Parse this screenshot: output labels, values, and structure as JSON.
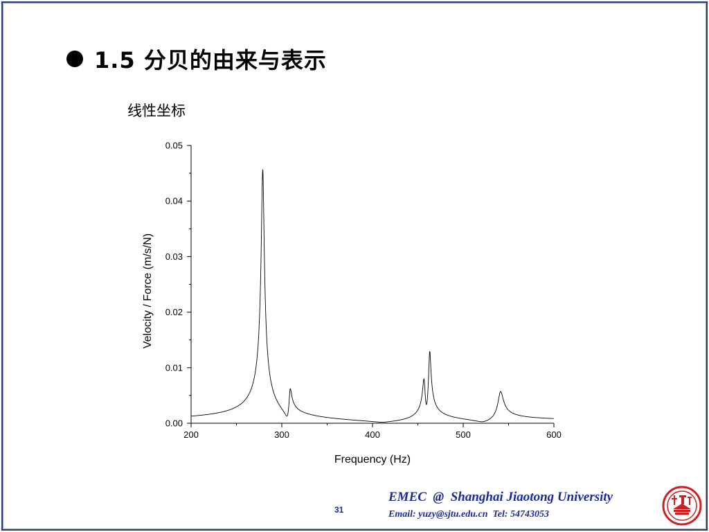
{
  "slide": {
    "title": "1.5 分贝的由来与表示",
    "subtitle": "线性坐标",
    "page_number": "31",
    "footer_brand": "EMEC  @  Shanghai Jiaotong University",
    "footer_contact": "Email: yuzy@sjtu.edu.cn  Tel: 54743053",
    "logo_icon": "university-seal-icon",
    "colors": {
      "frame": "#2a3f7a",
      "footer_text": "#1a2a99",
      "logo_red": "#cc1f1f"
    }
  },
  "chart_data": {
    "type": "line",
    "xlabel": "Frequency (Hz)",
    "ylabel": "Velocity / Force  (m/s/N)",
    "xlim": [
      200,
      600
    ],
    "ylim": [
      0,
      0.05
    ],
    "x_ticks": [
      200,
      300,
      400,
      500,
      600
    ],
    "x_tick_labels": [
      "200",
      "300",
      "400",
      "500",
      "600"
    ],
    "y_ticks": [
      0,
      0.01,
      0.02,
      0.03,
      0.04,
      0.05
    ],
    "y_tick_labels": [
      "0.00",
      "0.01",
      "0.02",
      "0.03",
      "0.04",
      "0.05"
    ],
    "grid": false,
    "legend": "none",
    "series": [
      {
        "color": "#000000",
        "peaks": [
          {
            "x": 279,
            "y": 0.0455,
            "width": 1.6
          },
          {
            "x": 309,
            "y": 0.0052,
            "width": 1.4
          },
          {
            "x": 457,
            "y": 0.0068,
            "width": 1.4
          },
          {
            "x": 463,
            "y": 0.0122,
            "width": 1.3
          },
          {
            "x": 541,
            "y": 0.0055,
            "width": 2.8
          }
        ],
        "x": [
          200,
          230,
          260,
          270,
          275,
          278,
          279,
          280,
          283,
          290,
          300,
          306,
          309,
          312,
          320,
          350,
          400,
          430,
          450,
          455,
          457,
          459,
          461,
          463,
          465,
          470,
          490,
          530,
          537,
          541,
          545,
          552,
          580,
          600
        ],
        "y": [
          0.0004,
          0.0005,
          0.0012,
          0.0028,
          0.0063,
          0.0255,
          0.0455,
          0.0255,
          0.0063,
          0.0012,
          0.0008,
          0.0016,
          0.0052,
          0.0016,
          0.0005,
          0.0003,
          0.0003,
          0.0006,
          0.0015,
          0.0034,
          0.0068,
          0.0021,
          0.0045,
          0.0122,
          0.004,
          0.001,
          0.0006,
          0.0011,
          0.003,
          0.0055,
          0.003,
          0.0009,
          0.0003,
          0.0002
        ]
      }
    ]
  }
}
